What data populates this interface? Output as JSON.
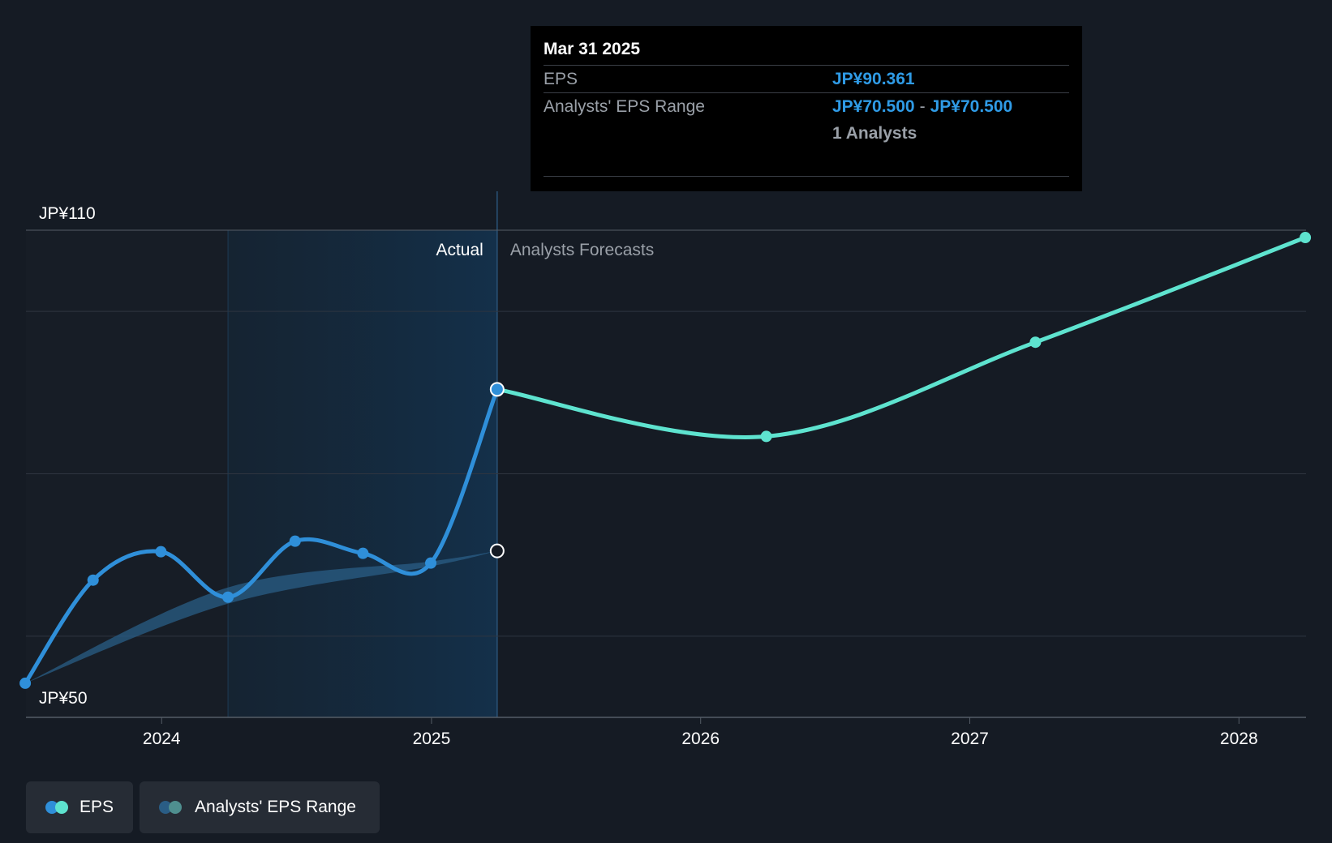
{
  "colors": {
    "background": "#151b24",
    "actual_line": "#2f8fd9",
    "forecast_line": "#5ee3cf",
    "range_band": "#2a5d85",
    "grid": "#2f3540",
    "highlight_bg": "#14304a"
  },
  "tooltip": {
    "date": "Mar 31 2025",
    "eps_label": "EPS",
    "eps_value": "JP¥90.361",
    "range_label": "Analysts' EPS Range",
    "range_low": "JP¥70.500",
    "range_sep": "-",
    "range_high": "JP¥70.500",
    "analysts": "1 Analysts"
  },
  "legend": {
    "eps_label": "EPS",
    "range_label": "Analysts' EPS Range"
  },
  "chart_data": {
    "type": "line",
    "region_labels": {
      "actual": "Actual",
      "forecast": "Analysts Forecasts"
    },
    "y_tick_labels": {
      "top": "JP¥110",
      "bottom": "JP¥50"
    },
    "ylim": [
      50,
      110
    ],
    "xlim": [
      "2023-07-01",
      "2028-04-01"
    ],
    "x_ticks": [
      {
        "label": "2024",
        "date": "2024-01-01"
      },
      {
        "label": "2025",
        "date": "2025-01-01"
      },
      {
        "label": "2026",
        "date": "2026-01-01"
      },
      {
        "label": "2027",
        "date": "2027-01-01"
      },
      {
        "label": "2028",
        "date": "2028-01-01"
      }
    ],
    "y_gridlines": [
      60,
      80,
      100,
      110
    ],
    "highlight_range": [
      "2024-03-31",
      "2025-03-31"
    ],
    "series": [
      {
        "name": "EPS",
        "segment": "actual",
        "points": [
          {
            "x": "2023-06-30",
            "y": 54.2
          },
          {
            "x": "2023-09-30",
            "y": 66.9
          },
          {
            "x": "2023-12-31",
            "y": 70.4
          },
          {
            "x": "2024-03-31",
            "y": 64.8
          },
          {
            "x": "2024-06-30",
            "y": 71.7
          },
          {
            "x": "2024-09-30",
            "y": 70.2
          },
          {
            "x": "2024-12-31",
            "y": 69.0
          },
          {
            "x": "2025-03-31",
            "y": 90.4
          }
        ]
      },
      {
        "name": "EPS",
        "segment": "forecast",
        "points": [
          {
            "x": "2025-03-31",
            "y": 90.4
          },
          {
            "x": "2026-03-31",
            "y": 84.6
          },
          {
            "x": "2027-03-31",
            "y": 96.2
          },
          {
            "x": "2028-03-31",
            "y": 109.1
          }
        ]
      },
      {
        "name": "Analysts' EPS Range",
        "segment": "band",
        "upper": [
          {
            "x": "2023-06-30",
            "y": 54.2
          },
          {
            "x": "2024-03-31",
            "y": 66.0
          },
          {
            "x": "2024-12-31",
            "y": 69.2
          },
          {
            "x": "2025-03-31",
            "y": 70.5
          }
        ],
        "lower": [
          {
            "x": "2023-06-30",
            "y": 54.2
          },
          {
            "x": "2024-03-31",
            "y": 64.0
          },
          {
            "x": "2024-12-31",
            "y": 68.6
          },
          {
            "x": "2025-03-31",
            "y": 70.5
          }
        ],
        "marker": {
          "x": "2025-03-31",
          "y": 70.5
        }
      }
    ]
  }
}
